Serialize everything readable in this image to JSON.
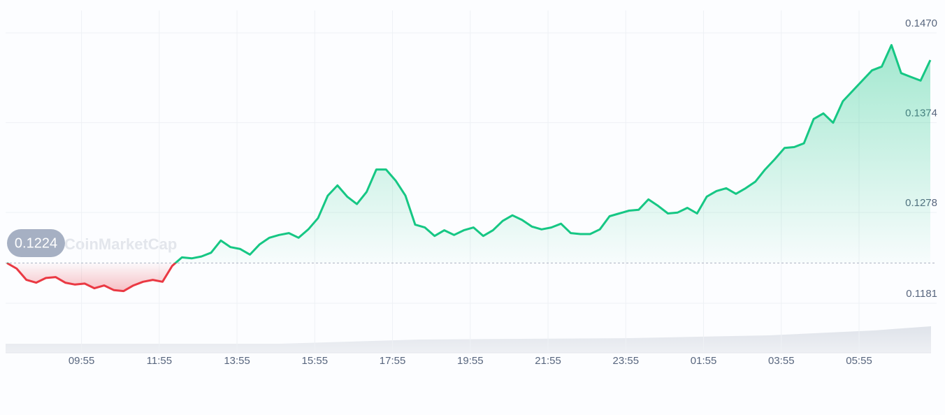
{
  "chart_data": {
    "type": "line",
    "watermark": "CoinMarketCap",
    "baseline": 0.1224,
    "color_up": "#16c784",
    "color_down": "#ea3943",
    "grid": true,
    "x": [
      "08:00",
      "08:15",
      "08:30",
      "08:45",
      "09:00",
      "09:15",
      "09:30",
      "09:45",
      "10:00",
      "10:15",
      "10:30",
      "10:45",
      "11:00",
      "11:15",
      "11:30",
      "11:45",
      "12:00",
      "12:15",
      "12:30",
      "12:45",
      "13:00",
      "13:15",
      "13:30",
      "13:45",
      "14:00",
      "14:15",
      "14:30",
      "14:45",
      "15:00",
      "15:15",
      "15:30",
      "15:45",
      "16:00",
      "16:15",
      "16:30",
      "16:45",
      "17:00",
      "17:15",
      "17:30",
      "17:45",
      "18:00",
      "18:15",
      "18:30",
      "18:45",
      "19:00",
      "19:15",
      "19:30",
      "19:45",
      "20:00",
      "20:15",
      "20:30",
      "20:45",
      "21:00",
      "21:15",
      "21:30",
      "21:45",
      "22:00",
      "22:15",
      "22:30",
      "22:45",
      "23:00",
      "23:15",
      "23:30",
      "23:45",
      "00:00",
      "00:15",
      "00:30",
      "00:45",
      "01:00",
      "01:15",
      "01:30",
      "01:45",
      "02:00",
      "02:15",
      "02:30",
      "02:45",
      "03:00",
      "03:15",
      "03:30",
      "03:45",
      "04:00",
      "04:15",
      "04:30",
      "04:45",
      "05:00",
      "05:15",
      "05:30",
      "05:45",
      "06:00",
      "06:15",
      "06:30",
      "06:45",
      "07:00",
      "07:15",
      "07:30",
      "07:45"
    ],
    "values": [
      0.1224,
      0.1218,
      0.1206,
      0.1203,
      0.1208,
      0.1209,
      0.1203,
      0.1201,
      0.1202,
      0.1197,
      0.12,
      0.1195,
      0.1194,
      0.12,
      0.1204,
      0.1206,
      0.1204,
      0.1221,
      0.123,
      0.1229,
      0.1231,
      0.1235,
      0.1248,
      0.1241,
      0.1239,
      0.1233,
      0.1244,
      0.1251,
      0.1254,
      0.1256,
      0.1251,
      0.126,
      0.1272,
      0.1296,
      0.1307,
      0.1295,
      0.1287,
      0.13,
      0.1324,
      0.1324,
      0.1312,
      0.1296,
      0.1265,
      0.1262,
      0.1253,
      0.1259,
      0.1254,
      0.1259,
      0.1262,
      0.1253,
      0.1259,
      0.1269,
      0.1275,
      0.127,
      0.1263,
      0.126,
      0.1262,
      0.1266,
      0.1256,
      0.1255,
      0.1255,
      0.126,
      0.1274,
      0.1277,
      0.128,
      0.1281,
      0.1292,
      0.1285,
      0.1277,
      0.1278,
      0.1283,
      0.1277,
      0.1295,
      0.1301,
      0.1304,
      0.1298,
      0.1304,
      0.1311,
      0.1324,
      0.1335,
      0.1347,
      0.1348,
      0.1352,
      0.1378,
      0.1384,
      0.1374,
      0.1397,
      0.1408,
      0.1419,
      0.143,
      0.1434,
      0.1457,
      0.1427,
      0.1423,
      0.1419,
      0.1441
    ],
    "xticks": [
      "09:55",
      "11:55",
      "13:55",
      "15:55",
      "17:55",
      "19:55",
      "21:55",
      "23:55",
      "01:55",
      "03:55",
      "05:55"
    ],
    "ylim": [
      0.1128,
      0.1494
    ],
    "yticks": [
      0.1181,
      0.1278,
      0.1374,
      {
        "value": 0.147,
        "label": "0.1470"
      }
    ]
  }
}
